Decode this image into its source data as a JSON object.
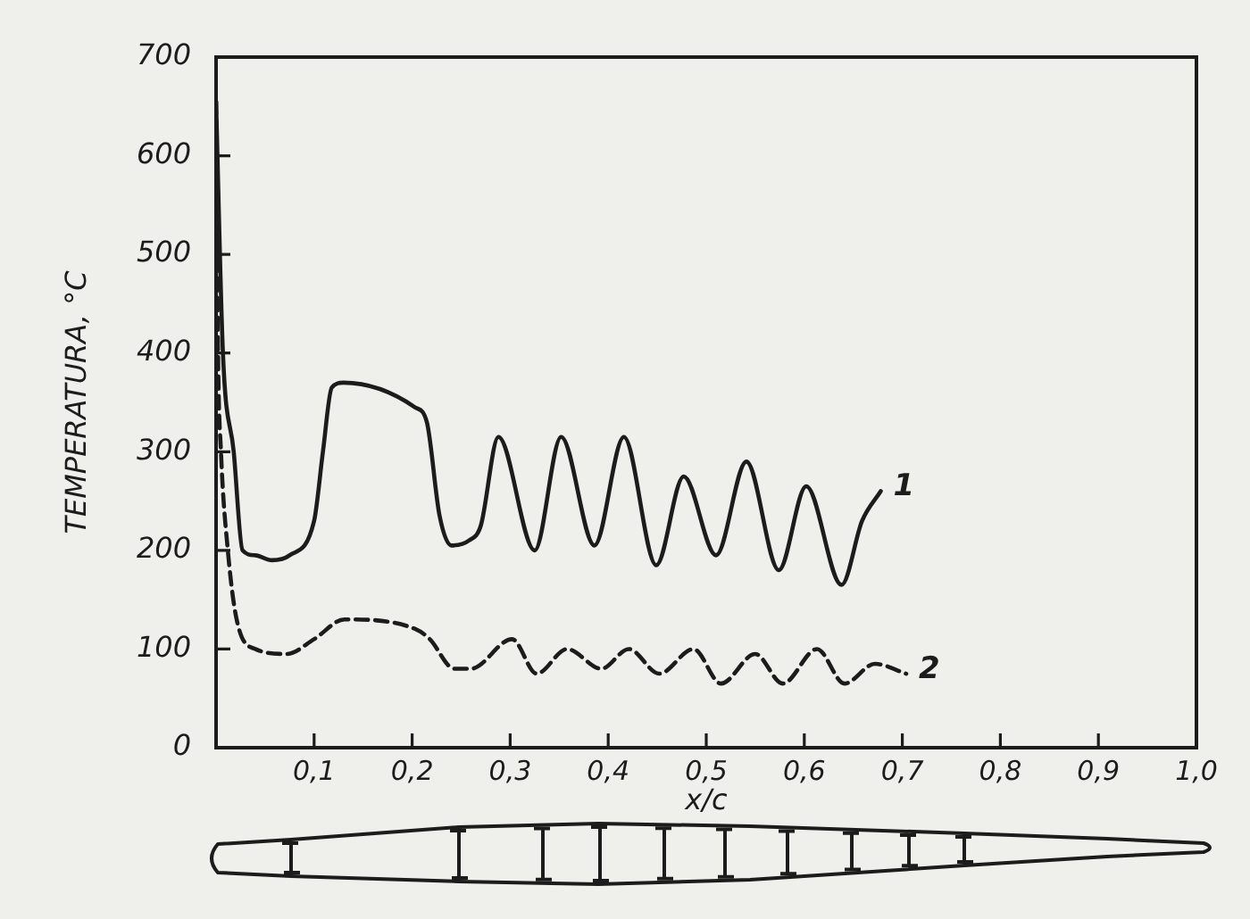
{
  "chart_data": {
    "type": "line",
    "xlabel": "x/c",
    "ylabel": "TEMPERATURA, °C",
    "xlim": [
      0,
      1
    ],
    "ylim": [
      0,
      700
    ],
    "xticks": [
      {
        "value": 0.1,
        "label": "0,1"
      },
      {
        "value": 0.2,
        "label": "0,2"
      },
      {
        "value": 0.3,
        "label": "0,3"
      },
      {
        "value": 0.4,
        "label": "0,4"
      },
      {
        "value": 0.5,
        "label": "0,5"
      },
      {
        "value": 0.6,
        "label": "0,6"
      },
      {
        "value": 0.7,
        "label": "0,7"
      },
      {
        "value": 0.8,
        "label": "0,8"
      },
      {
        "value": 0.9,
        "label": "0,9"
      },
      {
        "value": 1,
        "label": "1,0"
      }
    ],
    "yticks": [
      0,
      100,
      200,
      300,
      400,
      500,
      600,
      700
    ],
    "series": [
      {
        "name": "1",
        "color": "#1c1c1c",
        "line_style": "solid",
        "x": [
          0,
          0.007,
          0.018,
          0.027,
          0.04,
          0.057,
          0.075,
          0.1,
          0.109,
          0.118,
          0.13,
          0.203,
          0.215,
          0.228,
          0.24,
          0.258,
          0.27,
          0.288,
          0.325,
          0.352,
          0.386,
          0.416,
          0.449,
          0.477,
          0.51,
          0.541,
          0.574,
          0.602,
          0.638,
          0.659,
          0.678
        ],
        "values": [
          655,
          400,
          300,
          200,
          195,
          190,
          195,
          230,
          300,
          365,
          370,
          345,
          330,
          235,
          205,
          210,
          225,
          315,
          200,
          315,
          205,
          315,
          185,
          275,
          195,
          290,
          180,
          265,
          165,
          230,
          260
        ]
      },
      {
        "name": "2",
        "color": "#1c1c1c",
        "line_style": "dashed",
        "x": [
          0,
          0.002,
          0.005,
          0.012,
          0.021,
          0.04,
          0.072,
          0.1,
          0.131,
          0.204,
          0.218,
          0.243,
          0.26,
          0.302,
          0.327,
          0.358,
          0.393,
          0.421,
          0.452,
          0.487,
          0.515,
          0.55,
          0.578,
          0.613,
          0.641,
          0.672,
          0.704
        ],
        "values": [
          655,
          400,
          300,
          200,
          130,
          100,
          95,
          110,
          130,
          120,
          110,
          80,
          80,
          110,
          75,
          100,
          80,
          100,
          75,
          100,
          65,
          95,
          65,
          100,
          65,
          85,
          75
        ]
      }
    ]
  }
}
